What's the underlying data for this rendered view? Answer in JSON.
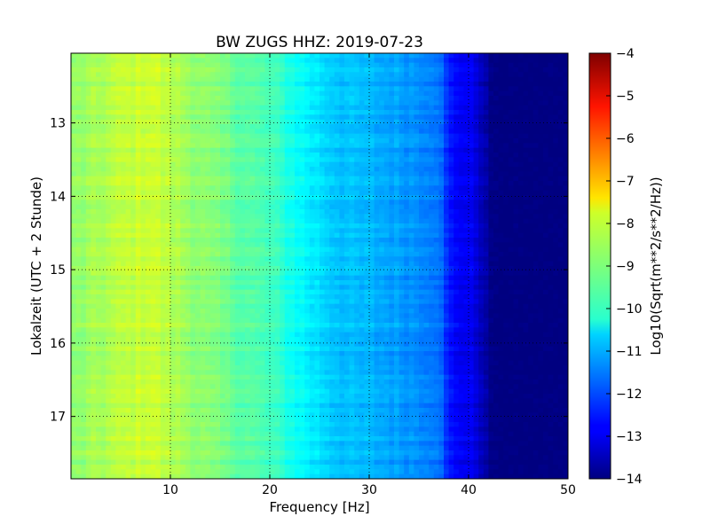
{
  "chart_data": {
    "type": "heatmap",
    "title": "BW ZUGS HHZ: 2019-07-23",
    "xlabel": "Frequency [Hz]",
    "ylabel": "Lokalzeit (UTC + 2 Stunde)",
    "xlim": [
      0,
      50
    ],
    "ylim": [
      12.05,
      17.85
    ],
    "y_inverted": true,
    "x_ticks": [
      10,
      20,
      30,
      40,
      50
    ],
    "y_ticks": [
      13,
      14,
      15,
      16,
      17
    ],
    "grid": true,
    "colorbar": {
      "label": "Log10(Sqrt(m**2/s**2/Hz))",
      "range": [
        -14,
        -4
      ],
      "ticks": [
        -4,
        -5,
        -6,
        -7,
        -8,
        -9,
        -10,
        -11,
        -12,
        -13,
        -14
      ],
      "colormap": "jet"
    },
    "spectral_profile": {
      "frequency_hz": [
        0,
        5,
        8,
        10,
        15,
        20,
        22,
        24,
        26,
        28,
        30,
        33,
        36,
        37,
        38,
        40,
        41,
        42,
        43,
        50
      ],
      "log10_amplitude": [
        -8.9,
        -8.4,
        -8.2,
        -8.5,
        -9.1,
        -9.6,
        -10.0,
        -10.4,
        -10.7,
        -10.9,
        -11.0,
        -11.2,
        -11.4,
        -11.5,
        -12.6,
        -12.9,
        -13.1,
        -13.9,
        -14.0,
        -14.0
      ]
    }
  }
}
